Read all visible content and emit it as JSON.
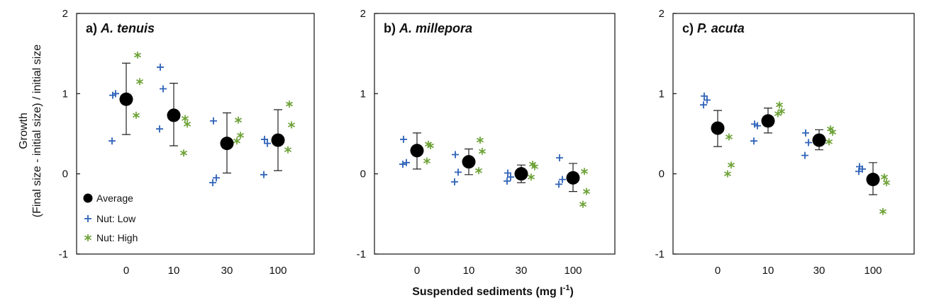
{
  "chart_data": {
    "type": "scatter",
    "ylabel_line1": "Growth",
    "ylabel_line2": "(Final size - initial size) / initial size",
    "xlabel_main": "Suspended sediments (mg l",
    "xlabel_sup": "-1",
    "xlabel_close": ")",
    "categories": [
      "0",
      "10",
      "30",
      "100"
    ],
    "ylim": [
      -1,
      2
    ],
    "yticks": [
      "-1",
      "0",
      "1",
      "2"
    ],
    "legend": {
      "placement": "bottom-left",
      "average": "Average",
      "low": "Nut: Low",
      "high": "Nut: High"
    },
    "colors": {
      "average": "#000000",
      "low": "#2e62b8",
      "high": "#6ea238"
    },
    "panels": [
      {
        "title_prefix": "a) ",
        "title_species": "A. tenuis",
        "average": [
          0.93,
          0.73,
          0.38,
          0.42
        ],
        "err_low": [
          0.49,
          0.35,
          0.01,
          0.04
        ],
        "err_high": [
          1.38,
          1.13,
          0.76,
          0.8
        ],
        "low": [
          [
            0.98,
            1.0,
            0.41
          ],
          [
            1.33,
            1.06,
            0.56
          ],
          [
            0.66,
            -0.05,
            -0.11
          ],
          [
            0.43,
            0.38,
            -0.01
          ]
        ],
        "high": [
          [
            1.48,
            1.15,
            0.73
          ],
          [
            0.69,
            0.62,
            0.26
          ],
          [
            0.67,
            0.48,
            0.41
          ],
          [
            0.87,
            0.61,
            0.3
          ]
        ]
      },
      {
        "title_prefix": "b) ",
        "title_species": "A. millepora",
        "average": [
          0.29,
          0.15,
          0.0,
          -0.05
        ],
        "err_low": [
          0.06,
          -0.01,
          -0.11,
          -0.22
        ],
        "err_high": [
          0.51,
          0.31,
          0.11,
          0.13
        ],
        "low": [
          [
            0.43,
            0.14,
            0.12
          ],
          [
            0.24,
            0.02,
            -0.1
          ],
          [
            0.01,
            -0.04,
            -0.09
          ],
          [
            0.2,
            -0.07,
            -0.13
          ]
        ],
        "high": [
          [
            0.37,
            0.35,
            0.16
          ],
          [
            0.42,
            0.28,
            0.04
          ],
          [
            0.12,
            0.09,
            -0.04
          ],
          [
            0.03,
            -0.22,
            -0.38
          ]
        ]
      },
      {
        "title_prefix": "c) ",
        "title_species": "P. acuta",
        "average": [
          0.57,
          0.66,
          0.42,
          -0.07
        ],
        "err_low": [
          0.34,
          0.51,
          0.3,
          -0.26
        ],
        "err_high": [
          0.79,
          0.82,
          0.55,
          0.14
        ],
        "low": [
          [
            0.97,
            0.92,
            0.86
          ],
          [
            0.62,
            0.6,
            0.41
          ],
          [
            0.51,
            0.39,
            0.23
          ],
          [
            0.09,
            0.06,
            0.03
          ]
        ],
        "high": [
          [
            0.46,
            0.11,
            0.0
          ],
          [
            0.86,
            0.78,
            0.75
          ],
          [
            0.56,
            0.52,
            0.4
          ],
          [
            -0.04,
            -0.11,
            -0.47
          ]
        ]
      }
    ]
  }
}
